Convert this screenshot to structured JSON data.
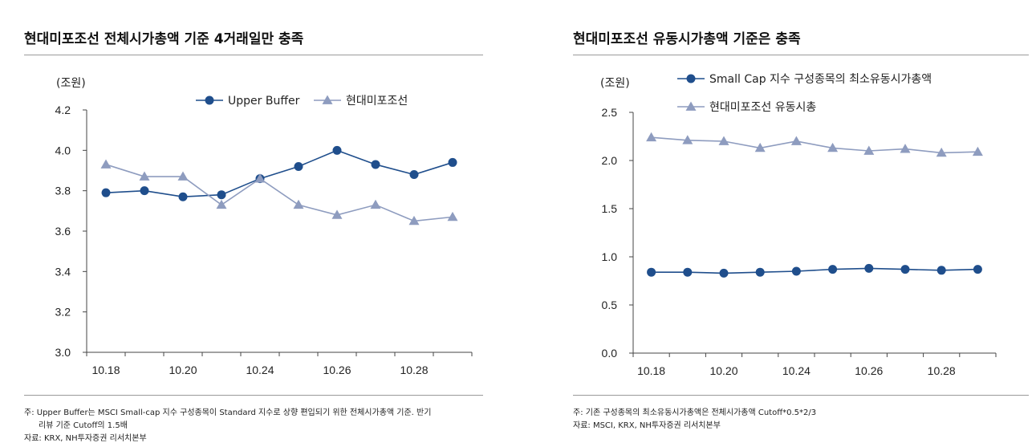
{
  "left": {
    "title": "현대미포조선 전체시가총액 기준 4거래일만 충족",
    "note_line1": "주: Upper Buffer는 MSCI Small-cap 지수 구성종목이 Standard 지수로 상향 편입되기 위한 전체시가총액 기준. 반기",
    "note_line2": "리뷰 기준 Cutoff의 1.5배",
    "source": "자료: KRX, NH투자증권 리서치본부"
  },
  "right": {
    "title": "현대미포조선 유동시가총액 기준은 충족",
    "note_line1": "주: 기존 구성종목의 최소유동시가총액은 전체시가총액 Cutoff*0.5*2/3",
    "source": "자료: MSCI, KRX, NH투자증권 리서치본부"
  },
  "colors": {
    "series_dark": "#1f4e8c",
    "series_light": "#8e9cbf",
    "axis": "#444444",
    "rule": "#9a9a9a"
  },
  "chart_data": [
    {
      "type": "line",
      "unit": "(조원)",
      "x_tick_labels": [
        "10.18",
        "10.20",
        "10.24",
        "10.26",
        "10.28"
      ],
      "ylim": [
        3.0,
        4.2
      ],
      "y_ticks": [
        "3.0",
        "3.2",
        "3.4",
        "3.6",
        "3.8",
        "4.0",
        "4.2"
      ],
      "legend_position": "top-right",
      "grid": false,
      "series": [
        {
          "name": "Upper Buffer",
          "marker": "circle",
          "values": [
            3.79,
            3.8,
            3.77,
            3.78,
            3.86,
            3.92,
            4.0,
            3.93,
            3.88,
            3.94
          ]
        },
        {
          "name": "현대미포조선",
          "marker": "triangle",
          "values": [
            3.93,
            3.87,
            3.87,
            3.73,
            3.86,
            3.73,
            3.68,
            3.73,
            3.65,
            3.67
          ]
        }
      ]
    },
    {
      "type": "line",
      "unit": "(조원)",
      "x_tick_labels": [
        "10.18",
        "10.20",
        "10.24",
        "10.26",
        "10.28"
      ],
      "ylim": [
        0.0,
        2.5
      ],
      "y_ticks": [
        "0.0",
        "0.5",
        "1.0",
        "1.5",
        "2.0",
        "2.5"
      ],
      "legend_position": "top",
      "grid": false,
      "series": [
        {
          "name": "Small Cap 지수 구성종목의 최소유동시가총액",
          "marker": "circle",
          "values": [
            0.84,
            0.84,
            0.83,
            0.84,
            0.85,
            0.87,
            0.88,
            0.87,
            0.86,
            0.87
          ]
        },
        {
          "name": "현대미포조선 유동시총",
          "marker": "triangle",
          "values": [
            2.24,
            2.21,
            2.2,
            2.13,
            2.2,
            2.13,
            2.1,
            2.12,
            2.08,
            2.09
          ]
        }
      ]
    }
  ]
}
